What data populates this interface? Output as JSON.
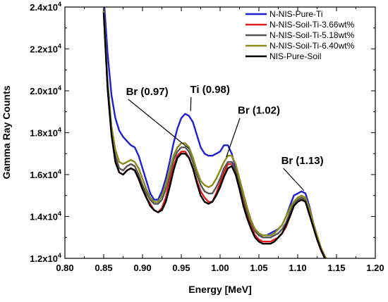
{
  "chart_data": {
    "type": "line",
    "title": "",
    "xlabel": "Energy [MeV]",
    "ylabel": "Gamma Ray Counts",
    "xlim": [
      0.8,
      1.2
    ],
    "ylim": [
      12000,
      24000
    ],
    "x_ticks": [
      0.8,
      0.85,
      0.9,
      0.95,
      1.0,
      1.05,
      1.1,
      1.15,
      1.2
    ],
    "x_tick_labels": [
      "0.80",
      "0.85",
      "0.90",
      "0.95",
      "1.00",
      "1.05",
      "1.10",
      "1.15",
      "1.20"
    ],
    "y_ticks": [
      12000,
      14000,
      16000,
      18000,
      20000,
      22000,
      24000
    ],
    "y_tick_labels": [
      {
        "base": "1.2x10",
        "exp": "4"
      },
      {
        "base": "1.4x10",
        "exp": "4"
      },
      {
        "base": "1.6x10",
        "exp": "4"
      },
      {
        "base": "1.8x10",
        "exp": "4"
      },
      {
        "base": "2.0x10",
        "exp": "4"
      },
      {
        "base": "2.2x10",
        "exp": "4"
      },
      {
        "base": "2.4x10",
        "exp": "4"
      }
    ],
    "grid": false,
    "legend_position": "top-right",
    "x": [
      0.85,
      0.855,
      0.86,
      0.865,
      0.87,
      0.875,
      0.88,
      0.885,
      0.89,
      0.895,
      0.9,
      0.905,
      0.91,
      0.915,
      0.92,
      0.925,
      0.93,
      0.935,
      0.94,
      0.945,
      0.95,
      0.955,
      0.96,
      0.965,
      0.97,
      0.975,
      0.98,
      0.985,
      0.99,
      0.995,
      1.0,
      1.005,
      1.01,
      1.015,
      1.02,
      1.025,
      1.03,
      1.035,
      1.04,
      1.045,
      1.05,
      1.055,
      1.06,
      1.065,
      1.07,
      1.075,
      1.08,
      1.085,
      1.09,
      1.095,
      1.1,
      1.105,
      1.11,
      1.115,
      1.12,
      1.125,
      1.13,
      1.135,
      1.14
    ],
    "series": [
      {
        "name": "N-NIS-Pure-Ti",
        "color": "#1f1fd6",
        "values": [
          24500,
          21800,
          19800,
          18700,
          18100,
          17800,
          17600,
          17400,
          17300,
          16900,
          16300,
          15700,
          15100,
          14800,
          14800,
          15200,
          15800,
          16600,
          17500,
          18200,
          18700,
          18900,
          18800,
          18500,
          17900,
          17300,
          17000,
          16900,
          16900,
          17000,
          17100,
          17400,
          17400,
          17000,
          16300,
          15600,
          14800,
          14100,
          13600,
          13300,
          13100,
          13100,
          13100,
          13200,
          13300,
          13400,
          13600,
          14000,
          14500,
          15000,
          15100,
          15200,
          15100,
          14500,
          13700,
          13000,
          12400,
          12000,
          11700
        ]
      },
      {
        "name": "N-NIS-Soil-Ti-3.66wt%",
        "color": "#e01a1a",
        "values": [
          23800,
          20200,
          18000,
          16700,
          16100,
          16000,
          16200,
          16300,
          16200,
          15800,
          15300,
          14900,
          14600,
          14300,
          14200,
          14400,
          14900,
          15700,
          16400,
          16900,
          17100,
          17100,
          16800,
          16300,
          15700,
          15200,
          14900,
          14700,
          14700,
          15100,
          15600,
          16100,
          16500,
          16500,
          16000,
          15400,
          14700,
          14000,
          13500,
          13100,
          12900,
          12800,
          12800,
          12800,
          12900,
          13000,
          13200,
          13500,
          14000,
          14500,
          14700,
          14800,
          14700,
          14200,
          13500,
          12900,
          12400,
          12000,
          11700
        ]
      },
      {
        "name": "N-NIS-Soil-Ti-5.18wt%",
        "color": "#555555",
        "values": [
          23800,
          20300,
          18100,
          16900,
          16300,
          16200,
          16400,
          16500,
          16400,
          16000,
          15500,
          15100,
          14800,
          14600,
          14600,
          14800,
          15300,
          16000,
          16700,
          17100,
          17300,
          17300,
          17100,
          16600,
          16000,
          15500,
          15200,
          15100,
          15100,
          15400,
          15800,
          16300,
          16600,
          16600,
          16200,
          15600,
          14900,
          14200,
          13700,
          13300,
          13100,
          13000,
          13000,
          13000,
          13100,
          13200,
          13400,
          13700,
          14200,
          14600,
          14800,
          14900,
          14800,
          14300,
          13600,
          13000,
          12500,
          12100,
          11800
        ]
      },
      {
        "name": "N-NIS-Soil-Ti-6.40wt%",
        "color": "#8b8b1a",
        "values": [
          23900,
          20500,
          18300,
          17200,
          16600,
          16500,
          16600,
          16700,
          16600,
          16300,
          15800,
          15300,
          14900,
          14700,
          14700,
          15000,
          15500,
          16200,
          16900,
          17300,
          17500,
          17500,
          17300,
          16800,
          16200,
          15700,
          15500,
          15400,
          15500,
          15800,
          16200,
          16600,
          16900,
          16900,
          16500,
          15800,
          15100,
          14400,
          13800,
          13400,
          13200,
          13100,
          13100,
          13100,
          13200,
          13400,
          13600,
          14000,
          14400,
          14700,
          14900,
          15000,
          14900,
          14400,
          13700,
          13100,
          12500,
          12100,
          11800
        ]
      },
      {
        "name": "NIS-Pure-Soil",
        "color": "#000000",
        "values": [
          23700,
          20100,
          17900,
          16600,
          16100,
          16000,
          16200,
          16300,
          16200,
          15800,
          15300,
          14900,
          14500,
          14300,
          14200,
          14300,
          14700,
          15400,
          16200,
          16800,
          17000,
          17000,
          16800,
          16300,
          15600,
          15000,
          14700,
          14600,
          14700,
          15000,
          15400,
          15900,
          16300,
          16400,
          16000,
          15300,
          14500,
          13900,
          13400,
          13000,
          12800,
          12700,
          12700,
          12700,
          12800,
          13000,
          13200,
          13600,
          14000,
          14500,
          14700,
          14800,
          14700,
          14100,
          13500,
          12900,
          12400,
          12000,
          11700
        ]
      }
    ],
    "annotations": [
      {
        "text": "Br (0.97)",
        "target_x": 0.96,
        "target_y": 17100,
        "label_x": 0.906,
        "label_y": 19800
      },
      {
        "text": "Ti (0.98)",
        "target_x": 0.962,
        "target_y": 18900,
        "label_x": 0.987,
        "label_y": 19900
      },
      {
        "text": "Br (1.02)",
        "target_x": 1.008,
        "target_y": 16700,
        "label_x": 1.05,
        "label_y": 18900
      },
      {
        "text": "Br (1.13)",
        "target_x": 1.108,
        "target_y": 15100,
        "label_x": 1.106,
        "label_y": 16500
      }
    ]
  }
}
